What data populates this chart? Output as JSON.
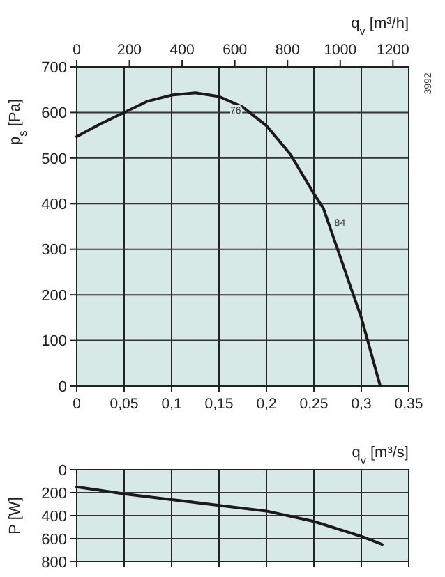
{
  "chart_data": [
    {
      "type": "line",
      "ylabel": "p$_{s}$ [Pa]",
      "x2label": "q$_{v}$ [m³/h]",
      "xlim": [
        0,
        0.35
      ],
      "xticks": [
        0,
        {
          "value": 0.05,
          "label": "0,05"
        },
        {
          "value": 0.1,
          "label": "0,1"
        },
        {
          "value": 0.15,
          "label": "0,15"
        },
        {
          "value": 0.2,
          "label": "0,2"
        },
        {
          "value": 0.25,
          "label": "0,25"
        },
        {
          "value": 0.3,
          "label": "0,3"
        },
        {
          "value": 0.35,
          "label": "0,35"
        }
      ],
      "x2lim": [
        0,
        1260
      ],
      "x2ticks": [
        0,
        200,
        400,
        600,
        800,
        1000,
        1200
      ],
      "ylim": [
        0,
        700
      ],
      "yticks": [
        0,
        100,
        200,
        300,
        400,
        500,
        600,
        700
      ],
      "grid": true,
      "series": [
        {
          "color": "#1a1a1a",
          "x": [
            0,
            0.025,
            0.05,
            0.075,
            0.1,
            0.125,
            0.15,
            0.175,
            0.2,
            0.225,
            0.25,
            0.26,
            0.275,
            0.29,
            0.3,
            0.32
          ],
          "values": [
            547,
            575,
            600,
            625,
            638,
            643,
            635,
            612,
            571,
            509,
            422,
            390,
            300,
            210,
            150,
            0
          ]
        }
      ],
      "annotations": [
        {
          "text": "76",
          "x": 0.15,
          "y": 635
        },
        {
          "text": "84",
          "x": 0.26,
          "y": 390
        },
        "3992"
      ]
    },
    {
      "type": "line",
      "xlabel": "q$_{v}$ [m³/s]",
      "ylabel": "P [W]",
      "xlim": [
        0,
        0.35
      ],
      "xticks": [
        0,
        0.05,
        0.1,
        0.15,
        0.2,
        0.25,
        0.3,
        0.35
      ],
      "ylim": [
        800,
        0
      ],
      "yticks": [
        0,
        200,
        400,
        600,
        800
      ],
      "grid": true,
      "tick_labels": "y",
      "series": [
        {
          "color": "#1a1a1a",
          "x": [
            0,
            0.05,
            0.1,
            0.15,
            0.2,
            0.25,
            0.3,
            0.322
          ],
          "values": [
            150,
            210,
            260,
            310,
            360,
            450,
            580,
            650
          ]
        }
      ]
    }
  ]
}
